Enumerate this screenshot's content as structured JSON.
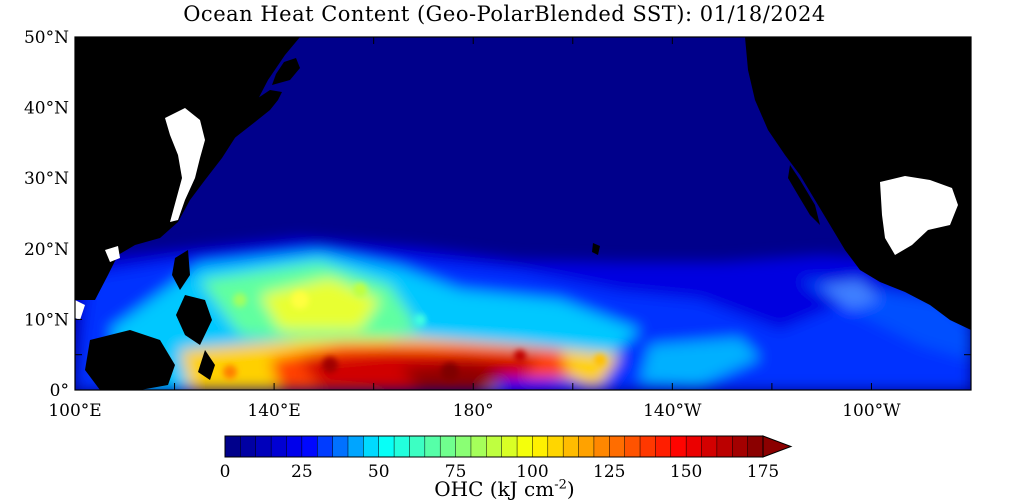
{
  "title": "Ocean Heat Content (Geo-PolarBlended SST): 01/18/2024",
  "map": {
    "region": "North Pacific Ocean",
    "lon_range_deg_east": [
      100,
      280
    ],
    "lat_range_deg": [
      0,
      50
    ],
    "land_color": "#000000",
    "no_data_color": "#ffffff",
    "x_ticks": [
      {
        "lon": 100,
        "label": "100°E"
      },
      {
        "lon": 140,
        "label": "140°E"
      },
      {
        "lon": 180,
        "label": "180°"
      },
      {
        "lon": 220,
        "label": "140°W"
      },
      {
        "lon": 260,
        "label": "100°W"
      }
    ],
    "y_ticks": [
      {
        "lat": 0,
        "label": "0°"
      },
      {
        "lat": 10,
        "label": "10°N"
      },
      {
        "lat": 20,
        "label": "20°N"
      },
      {
        "lat": 30,
        "label": "30°N"
      },
      {
        "lat": 40,
        "label": "40°N"
      },
      {
        "lat": 50,
        "label": "50°N"
      }
    ]
  },
  "colorbar": {
    "title_main": "OHC (kJ cm",
    "title_exp": "-2",
    "title_close": ")",
    "min": 0,
    "max": 175,
    "step": 5,
    "extend": "max",
    "tick_values": [
      0,
      25,
      50,
      75,
      100,
      125,
      150,
      175
    ],
    "tick_labels": [
      "0",
      "25",
      "50",
      "75",
      "100",
      "125",
      "150",
      "175"
    ],
    "colors": [
      "#00008b",
      "#0000ff",
      "#00ffff",
      "#7fff7f",
      "#ffff00",
      "#ff8000",
      "#ff0000",
      "#8b0000"
    ]
  }
}
